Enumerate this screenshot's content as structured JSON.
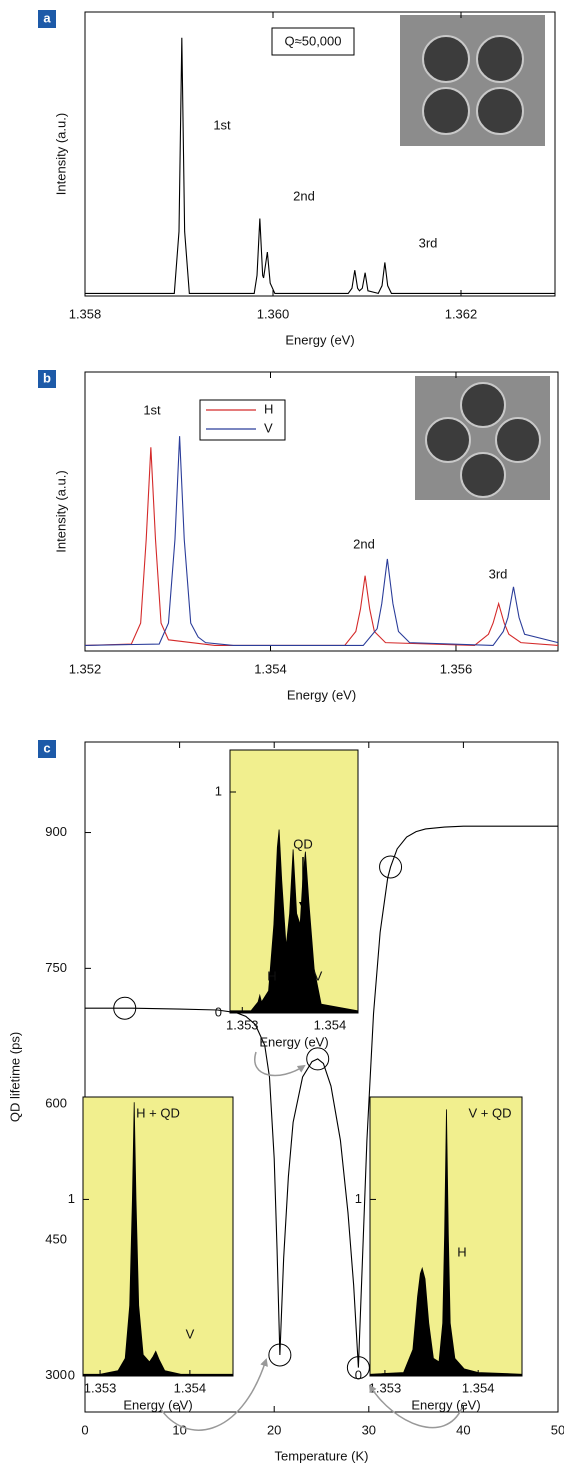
{
  "chart_data": [
    {
      "type": "line",
      "panel_label": "a",
      "xlabel": "Energy (eV)",
      "ylabel": "Intensity (a.u.)",
      "annotation": "Q≈50,000",
      "peak_labels": [
        "1st",
        "2nd",
        "3rd"
      ],
      "color": "#000000",
      "x": [
        1.358,
        1.35895,
        1.359,
        1.35903,
        1.35906,
        1.35911,
        1.3598,
        1.35983,
        1.35986,
        1.35989,
        1.3599,
        1.35994,
        1.35997,
        1.36002,
        1.3608,
        1.36084,
        1.36087,
        1.3609,
        1.36092,
        1.36095,
        1.36098,
        1.36101,
        1.36112,
        1.36116,
        1.36119,
        1.36122,
        1.36126,
        1.363
      ],
      "values": [
        0.01,
        0.01,
        0.25,
        1.0,
        0.25,
        0.01,
        0.01,
        0.08,
        0.3,
        0.08,
        0.07,
        0.17,
        0.05,
        0.01,
        0.01,
        0.03,
        0.1,
        0.03,
        0.02,
        0.03,
        0.09,
        0.02,
        0.01,
        0.04,
        0.13,
        0.04,
        0.01,
        0.01
      ],
      "xlim": [
        1.358,
        1.363
      ],
      "xticks": [
        1.358,
        {
          "value": 1.36,
          "label": "1.360"
        },
        1.362
      ],
      "ylim": [
        0,
        1.1
      ]
    },
    {
      "type": "line",
      "panel_label": "b",
      "xlabel": "Energy (eV)",
      "ylabel": "Intensity (a.u.)",
      "peak_labels": [
        "1st",
        "2nd",
        "3rd"
      ],
      "legend": "upper left",
      "series": [
        {
          "name": "H",
          "color": "#d42a2a",
          "x": [
            1.352,
            1.3525,
            1.3526,
            1.35266,
            1.35271,
            1.35276,
            1.35282,
            1.3529,
            1.3534,
            1.3548,
            1.35492,
            1.35497,
            1.35502,
            1.35507,
            1.35512,
            1.35524,
            1.3562,
            1.35635,
            1.3564,
            1.35646,
            1.35652,
            1.35657,
            1.3567,
            1.3571
          ],
          "values": [
            0.02,
            0.025,
            0.1,
            0.4,
            0.73,
            0.4,
            0.1,
            0.04,
            0.02,
            0.02,
            0.07,
            0.15,
            0.27,
            0.15,
            0.07,
            0.03,
            0.02,
            0.06,
            0.1,
            0.17,
            0.1,
            0.06,
            0.03,
            0.02
          ]
        },
        {
          "name": "V",
          "color": "#2b3d9a",
          "x": [
            1.352,
            1.3528,
            1.3529,
            1.35297,
            1.35302,
            1.35307,
            1.35314,
            1.35322,
            1.3533,
            1.3536,
            1.355,
            1.35515,
            1.3552,
            1.35526,
            1.35532,
            1.35538,
            1.3555,
            1.3564,
            1.35651,
            1.35656,
            1.35662,
            1.35668,
            1.35674,
            1.3571
          ],
          "values": [
            0.02,
            0.025,
            0.1,
            0.4,
            0.77,
            0.4,
            0.1,
            0.05,
            0.03,
            0.02,
            0.02,
            0.08,
            0.17,
            0.33,
            0.17,
            0.07,
            0.03,
            0.02,
            0.07,
            0.12,
            0.23,
            0.12,
            0.06,
            0.03
          ]
        }
      ],
      "xlim": [
        1.352,
        1.3571
      ],
      "xticks": [
        1.352,
        1.354,
        1.356
      ],
      "ylim": [
        0,
        1
      ]
    },
    {
      "type": "line",
      "panel_label": "c",
      "xlabel": "Temperature (K)",
      "ylabel": "QD lifetime (ps)",
      "color": "#000000",
      "x": [
        0,
        5,
        10,
        14,
        16,
        17,
        18,
        19,
        19.5,
        20,
        20.3,
        20.6,
        21,
        21.5,
        22,
        23,
        24,
        24.6,
        25.2,
        26,
        27,
        27.8,
        28.4,
        28.9,
        29.3,
        29.8,
        30.5,
        31.2,
        32,
        32.3,
        33,
        34,
        35,
        36,
        38,
        40,
        45,
        50
      ],
      "values": [
        706,
        706,
        705,
        704,
        701,
        697,
        688,
        665,
        630,
        540,
        440,
        323,
        430,
        520,
        580,
        630,
        647,
        650,
        645,
        620,
        560,
        480,
        400,
        309,
        420,
        560,
        700,
        790,
        850,
        862,
        882,
        895,
        901,
        904,
        906,
        907,
        907,
        907
      ],
      "markers": {
        "x": [
          4.2,
          20.6,
          24.6,
          28.9,
          32.3
        ],
        "values": [
          706,
          323,
          650,
          309,
          862
        ]
      },
      "xlim": [
        0,
        50
      ],
      "xticks": [
        0,
        10,
        20,
        30,
        40,
        50
      ],
      "ylim": [
        260,
        1000
      ],
      "yticks": [
        300,
        450,
        600,
        750,
        900
      ],
      "insets": [
        {
          "type": "area",
          "color": "#000000",
          "background": "#f1ef8e",
          "xlabel": "Energy (eV)",
          "labels": [
            "H",
            "QD",
            "V"
          ],
          "x": [
            1.35286,
            1.3531,
            1.35318,
            1.3532,
            1.35322,
            1.3533,
            1.35336,
            1.3534,
            1.35342,
            1.35345,
            1.3535,
            1.35354,
            1.35358,
            1.35362,
            1.35366,
            1.35369,
            1.35372,
            1.35376,
            1.35382,
            1.3539,
            1.35432
          ],
          "values": [
            0.01,
            0.01,
            0.05,
            0.08,
            0.05,
            0.1,
            0.4,
            0.75,
            0.83,
            0.6,
            0.3,
            0.45,
            0.74,
            0.45,
            0.4,
            0.6,
            0.73,
            0.5,
            0.2,
            0.04,
            0.01
          ],
          "xlim": [
            1.35286,
            1.35432
          ],
          "xticks": [
            1.353,
            1.354
          ],
          "ylim": [
            0,
            1.19
          ],
          "yticks": [
            0,
            1
          ]
        },
        {
          "type": "area",
          "color": "#000000",
          "background": "#f1ef8e",
          "xlabel": "Energy (eV)",
          "labels": [
            "H + QD",
            "V"
          ],
          "x": [
            1.35281,
            1.353,
            1.3532,
            1.35328,
            1.35333,
            1.35336,
            1.35338,
            1.3534,
            1.35343,
            1.35348,
            1.35355,
            1.35359,
            1.35362,
            1.35366,
            1.35372,
            1.3539,
            1.35448
          ],
          "values": [
            0.01,
            0.01,
            0.03,
            0.1,
            0.4,
            1.0,
            1.55,
            1.0,
            0.4,
            0.12,
            0.08,
            0.11,
            0.14,
            0.09,
            0.03,
            0.01,
            0.01
          ],
          "xlim": [
            1.35281,
            1.35448
          ],
          "xticks": [
            1.353,
            1.354
          ],
          "ylim": [
            0,
            1.58
          ],
          "yticks": [
            0,
            1
          ]
        },
        {
          "type": "area",
          "color": "#000000",
          "background": "#f1ef8e",
          "xlabel": "Energy (eV)",
          "labels": [
            "V + QD",
            "H"
          ],
          "x": [
            1.35284,
            1.3532,
            1.3533,
            1.35335,
            1.35338,
            1.3534,
            1.35343,
            1.35347,
            1.35352,
            1.35358,
            1.35362,
            1.35364,
            1.35366,
            1.35368,
            1.3537,
            1.35375,
            1.35385,
            1.354,
            1.35447
          ],
          "values": [
            0.01,
            0.02,
            0.15,
            0.45,
            0.58,
            0.61,
            0.55,
            0.3,
            0.1,
            0.08,
            0.3,
            0.8,
            1.51,
            0.8,
            0.3,
            0.1,
            0.04,
            0.02,
            0.01
          ],
          "xlim": [
            1.35284,
            1.35447
          ],
          "xticks": [
            1.353,
            1.354
          ],
          "ylim": [
            0,
            1.58
          ],
          "yticks": [
            0,
            1
          ]
        }
      ]
    }
  ]
}
